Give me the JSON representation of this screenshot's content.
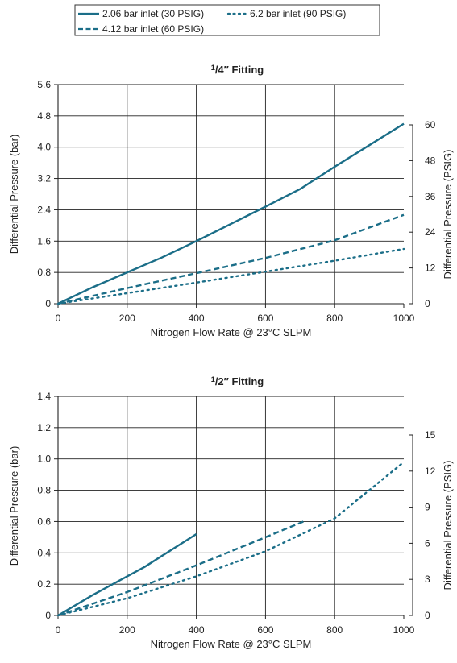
{
  "legend": {
    "items": [
      {
        "label": "2.06 bar inlet (30 PSIG)",
        "style": "solid"
      },
      {
        "label": "6.2 bar inlet (90 PSIG)",
        "style": "dotted"
      },
      {
        "label": "4.12 bar inlet (60 PSIG)",
        "style": "dashed"
      }
    ],
    "color": "#1b6e88"
  },
  "chart_data": [
    {
      "type": "line",
      "title_prefix": "1/4",
      "title_suffix": "″ Fitting",
      "xlabel": "Nitrogen Flow Rate @ 23°C SLPM",
      "ylabel": "Differential Pressure (bar)",
      "y2label": "Differential Pressure (PSIG)",
      "xlim": [
        0,
        1000
      ],
      "ylim": [
        0,
        5.6
      ],
      "x_ticks": [
        "0",
        "200",
        "400",
        "600",
        "800",
        "1000"
      ],
      "y_ticks": [
        "0",
        "0.8",
        "1.6",
        "2.4",
        "3.2",
        "4.0",
        "4.8",
        "5.6"
      ],
      "y2_ticks": [
        "0",
        "12",
        "24",
        "36",
        "48",
        "60"
      ],
      "grid": true,
      "series": [
        {
          "name": "2.06 bar inlet (30 PSIG)",
          "style": "solid",
          "x": [
            0,
            100,
            200,
            300,
            400,
            500,
            600,
            700,
            800,
            900,
            1000
          ],
          "y": [
            0,
            0.42,
            0.8,
            1.18,
            1.6,
            2.04,
            2.48,
            2.93,
            3.5,
            4.05,
            4.6
          ]
        },
        {
          "name": "4.12 bar inlet (60 PSIG)",
          "style": "dashed",
          "x": [
            0,
            200,
            400,
            600,
            800,
            1000
          ],
          "y": [
            0,
            0.4,
            0.78,
            1.17,
            1.62,
            2.27
          ]
        },
        {
          "name": "6.2 bar inlet (90 PSIG)",
          "style": "dotted",
          "x": [
            0,
            200,
            400,
            600,
            800,
            1000
          ],
          "y": [
            0,
            0.27,
            0.54,
            0.82,
            1.1,
            1.4
          ]
        }
      ]
    },
    {
      "type": "line",
      "title_prefix": "1/2",
      "title_suffix": "″ Fitting",
      "xlabel": "Nitrogen Flow Rate @ 23°C SLPM",
      "ylabel": "Differential Pressure (bar)",
      "y2label": "Differential Pressure (PSIG)",
      "xlim": [
        0,
        1000
      ],
      "ylim": [
        0,
        1.4
      ],
      "x_ticks": [
        "0",
        "200",
        "400",
        "600",
        "800",
        "1000"
      ],
      "y_ticks": [
        "0",
        "0.2",
        "0.4",
        "0.6",
        "0.8",
        "1.0",
        "1.2",
        "1.4"
      ],
      "y2_ticks": [
        "0",
        "3",
        "6",
        "9",
        "12",
        "15"
      ],
      "grid": true,
      "series": [
        {
          "name": "2.06 bar inlet (30 PSIG)",
          "style": "solid",
          "x": [
            0,
            100,
            200,
            250,
            300,
            350,
            400
          ],
          "y": [
            0,
            0.13,
            0.25,
            0.31,
            0.38,
            0.45,
            0.52
          ]
        },
        {
          "name": "4.12 bar inlet (60 PSIG)",
          "style": "dashed",
          "x": [
            0,
            200,
            400,
            600,
            710
          ],
          "y": [
            0,
            0.15,
            0.32,
            0.5,
            0.6
          ]
        },
        {
          "name": "6.2 bar inlet (90 PSIG)",
          "style": "dotted",
          "x": [
            0,
            200,
            400,
            600,
            800,
            1000
          ],
          "y": [
            0,
            0.11,
            0.25,
            0.41,
            0.62,
            0.98
          ]
        }
      ]
    }
  ]
}
